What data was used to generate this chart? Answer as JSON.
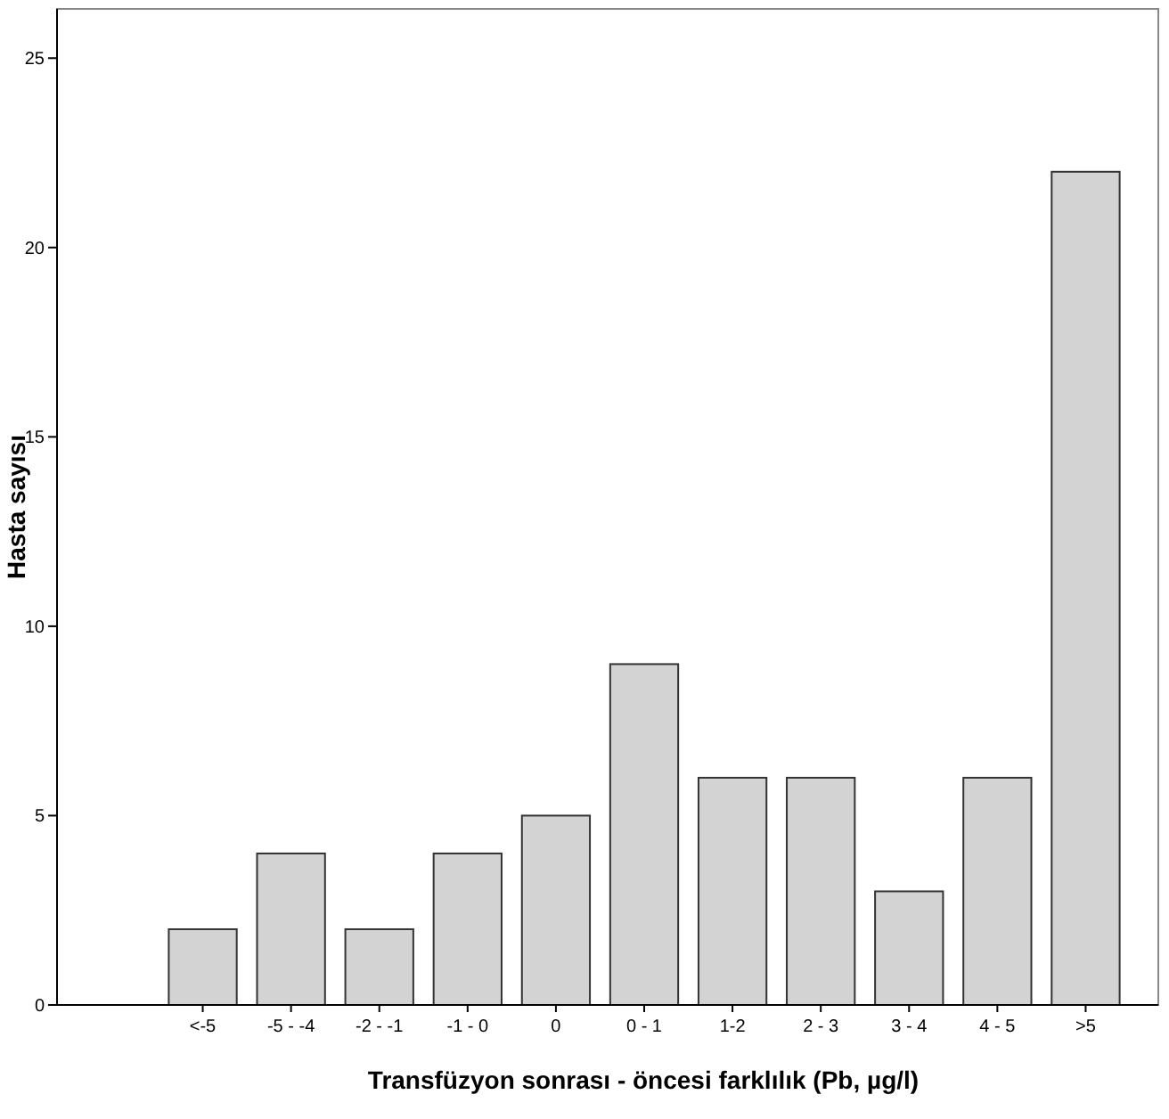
{
  "chart_data": {
    "type": "bar",
    "xlabel": "Transfüzyon sonrası - öncesi farklılık (Pb, µg/l)",
    "ylabel": "Hasta sayısı",
    "categories": [
      "<-5",
      "-5 - -4",
      "-2 - -1",
      "-1 - 0",
      "0",
      "0 - 1",
      "1-2",
      "2 - 3",
      "3 - 4",
      "4 - 5",
      ">5"
    ],
    "values": [
      2,
      4,
      2,
      4,
      5,
      9,
      6,
      6,
      3,
      6,
      22
    ],
    "color": "#d3d3d3",
    "ylim": [
      0,
      26.3
    ],
    "yticks": [
      0,
      5,
      10,
      15,
      20,
      25
    ],
    "grid": false
  }
}
